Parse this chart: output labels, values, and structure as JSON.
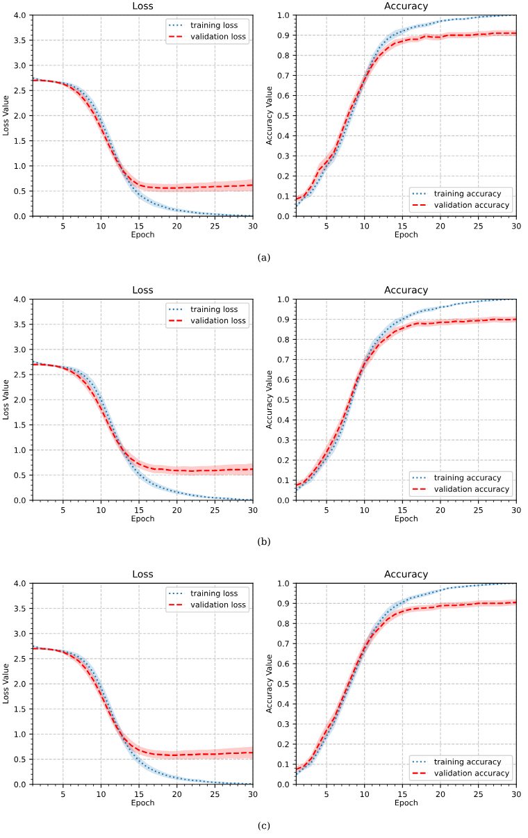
{
  "chart_data": [
    {
      "type": "line",
      "title": "Loss",
      "xlabel": "Epoch",
      "ylabel": "Loss Value",
      "xlim": [
        1,
        30
      ],
      "xticks": [
        5,
        10,
        15,
        20,
        25,
        30
      ],
      "ylim": [
        0,
        4
      ],
      "yticks": [
        {
          "value": 0,
          "label": "0.0"
        },
        0.5,
        {
          "value": 1,
          "label": "1.0"
        },
        1.5,
        {
          "value": 2,
          "label": "2.0"
        },
        2.5,
        {
          "value": 3,
          "label": "3.0"
        },
        3.5,
        {
          "value": 4,
          "label": "4.0"
        }
      ],
      "grid": true,
      "legend": "top right",
      "annotations": [
        "(a)"
      ],
      "x": [
        1,
        2,
        3,
        4,
        5,
        6,
        7,
        8,
        9,
        10,
        11,
        12,
        13,
        14,
        15,
        16,
        17,
        18,
        19,
        20,
        21,
        22,
        23,
        24,
        25,
        26,
        27,
        28,
        29,
        30
      ],
      "series": [
        {
          "name": "training loss",
          "color": "#1f77b4",
          "line_style": "dotted",
          "values": [
            2.75,
            2.71,
            2.69,
            2.67,
            2.65,
            2.61,
            2.53,
            2.4,
            2.2,
            1.9,
            1.55,
            1.18,
            0.85,
            0.6,
            0.43,
            0.33,
            0.25,
            0.2,
            0.15,
            0.12,
            0.1,
            0.08,
            0.06,
            0.05,
            0.04,
            0.03,
            0.02,
            0.02,
            0.01,
            0.01
          ],
          "lower": [
            2.73,
            2.69,
            2.67,
            2.65,
            2.62,
            2.57,
            2.47,
            2.32,
            2.1,
            1.78,
            1.43,
            1.06,
            0.75,
            0.5,
            0.35,
            0.26,
            0.19,
            0.15,
            0.11,
            0.08,
            0.07,
            0.05,
            0.03,
            0.03,
            0.02,
            0.01,
            0.0,
            0.01,
            0.0,
            0.0
          ],
          "upper": [
            2.77,
            2.73,
            2.71,
            2.69,
            2.68,
            2.65,
            2.59,
            2.48,
            2.3,
            2.02,
            1.67,
            1.3,
            0.95,
            0.7,
            0.51,
            0.4,
            0.31,
            0.25,
            0.19,
            0.16,
            0.13,
            0.11,
            0.09,
            0.07,
            0.06,
            0.05,
            0.04,
            0.03,
            0.02,
            0.02
          ]
        },
        {
          "name": "validation loss",
          "color": "#ff0000",
          "line_style": "dashed",
          "values": [
            2.7,
            2.7,
            2.69,
            2.67,
            2.63,
            2.56,
            2.45,
            2.28,
            2.05,
            1.75,
            1.42,
            1.12,
            0.88,
            0.72,
            0.62,
            0.58,
            0.57,
            0.56,
            0.56,
            0.56,
            0.57,
            0.57,
            0.58,
            0.58,
            0.59,
            0.59,
            0.6,
            0.6,
            0.61,
            0.62
          ],
          "lower": [
            2.68,
            2.68,
            2.67,
            2.65,
            2.6,
            2.51,
            2.38,
            2.19,
            1.95,
            1.65,
            1.32,
            1.02,
            0.78,
            0.62,
            0.54,
            0.5,
            0.49,
            0.48,
            0.48,
            0.48,
            0.48,
            0.48,
            0.49,
            0.49,
            0.49,
            0.49,
            0.5,
            0.49,
            0.5,
            0.5
          ],
          "upper": [
            2.72,
            2.72,
            2.71,
            2.69,
            2.66,
            2.61,
            2.52,
            2.37,
            2.15,
            1.85,
            1.52,
            1.22,
            0.98,
            0.82,
            0.7,
            0.66,
            0.65,
            0.64,
            0.64,
            0.64,
            0.66,
            0.66,
            0.67,
            0.67,
            0.69,
            0.69,
            0.7,
            0.71,
            0.72,
            0.74
          ]
        }
      ]
    },
    {
      "type": "line",
      "title": "Accuracy",
      "xlabel": "Epoch",
      "ylabel": "Accuracy Value",
      "xlim": [
        1,
        30
      ],
      "xticks": [
        5,
        10,
        15,
        20,
        25,
        30
      ],
      "ylim": [
        0,
        1
      ],
      "yticks": [
        {
          "value": 0,
          "label": "0.0"
        },
        0.1,
        0.2,
        0.3,
        0.4,
        0.5,
        0.6,
        0.7,
        0.8,
        0.9,
        {
          "value": 1,
          "label": "1.0"
        }
      ],
      "grid": true,
      "legend": "bottom right",
      "x": [
        1,
        2,
        3,
        4,
        5,
        6,
        7,
        8,
        9,
        10,
        11,
        12,
        13,
        14,
        15,
        16,
        17,
        18,
        19,
        20,
        21,
        22,
        23,
        24,
        25,
        26,
        27,
        28,
        29,
        30
      ],
      "series": [
        {
          "name": "training accuracy",
          "color": "#1f77b4",
          "line_style": "dotted",
          "values": [
            0.05,
            0.09,
            0.12,
            0.18,
            0.25,
            0.3,
            0.38,
            0.48,
            0.58,
            0.68,
            0.77,
            0.84,
            0.88,
            0.905,
            0.92,
            0.935,
            0.945,
            0.95,
            0.96,
            0.97,
            0.975,
            0.98,
            0.98,
            0.985,
            0.99,
            0.993,
            0.995,
            0.997,
            0.999,
            1.0
          ],
          "lower": [
            0.04,
            0.08,
            0.1,
            0.16,
            0.23,
            0.27,
            0.35,
            0.45,
            0.55,
            0.65,
            0.74,
            0.82,
            0.86,
            0.885,
            0.905,
            0.925,
            0.935,
            0.94,
            0.95,
            0.965,
            0.97,
            0.975,
            0.975,
            0.98,
            0.985,
            0.988,
            0.99,
            0.994,
            0.998,
            1.0
          ],
          "upper": [
            0.06,
            0.1,
            0.14,
            0.2,
            0.27,
            0.33,
            0.41,
            0.51,
            0.61,
            0.71,
            0.8,
            0.86,
            0.9,
            0.925,
            0.935,
            0.945,
            0.955,
            0.96,
            0.97,
            0.975,
            0.98,
            0.985,
            0.985,
            0.99,
            0.995,
            0.998,
            1.0,
            1.0,
            1.0,
            1.0
          ]
        },
        {
          "name": "validation accuracy",
          "color": "#ff0000",
          "line_style": "dashed",
          "values": [
            0.085,
            0.1,
            0.15,
            0.23,
            0.27,
            0.32,
            0.42,
            0.52,
            0.6,
            0.68,
            0.75,
            0.8,
            0.835,
            0.86,
            0.87,
            0.88,
            0.88,
            0.895,
            0.89,
            0.89,
            0.9,
            0.9,
            0.9,
            0.9,
            0.905,
            0.905,
            0.91,
            0.91,
            0.91,
            0.91
          ],
          "lower": [
            0.07,
            0.085,
            0.13,
            0.2,
            0.24,
            0.29,
            0.39,
            0.49,
            0.57,
            0.65,
            0.72,
            0.78,
            0.815,
            0.84,
            0.855,
            0.865,
            0.865,
            0.88,
            0.875,
            0.875,
            0.885,
            0.885,
            0.885,
            0.885,
            0.89,
            0.89,
            0.895,
            0.895,
            0.895,
            0.895
          ],
          "upper": [
            0.1,
            0.115,
            0.17,
            0.26,
            0.3,
            0.35,
            0.45,
            0.55,
            0.63,
            0.71,
            0.78,
            0.82,
            0.855,
            0.88,
            0.885,
            0.895,
            0.895,
            0.91,
            0.905,
            0.905,
            0.915,
            0.915,
            0.915,
            0.915,
            0.92,
            0.92,
            0.925,
            0.925,
            0.925,
            0.925
          ]
        }
      ]
    },
    {
      "type": "line",
      "title": "Loss",
      "xlabel": "Epoch",
      "ylabel": "Loss Value",
      "xlim": [
        1,
        30
      ],
      "xticks": [
        5,
        10,
        15,
        20,
        25,
        30
      ],
      "ylim": [
        0,
        4
      ],
      "yticks": [
        {
          "value": 0,
          "label": "0.0"
        },
        0.5,
        {
          "value": 1,
          "label": "1.0"
        },
        1.5,
        {
          "value": 2,
          "label": "2.0"
        },
        2.5,
        {
          "value": 3,
          "label": "3.0"
        },
        3.5,
        {
          "value": 4,
          "label": "4.0"
        }
      ],
      "grid": true,
      "legend": "top right",
      "annotations": [
        "(b)"
      ],
      "x": [
        1,
        2,
        3,
        4,
        5,
        6,
        7,
        8,
        9,
        10,
        11,
        12,
        13,
        14,
        15,
        16,
        17,
        18,
        19,
        20,
        21,
        22,
        23,
        24,
        25,
        26,
        27,
        28,
        29,
        30
      ],
      "series": [
        {
          "name": "training loss",
          "color": "#1f77b4",
          "line_style": "dotted",
          "values": [
            2.76,
            2.72,
            2.69,
            2.67,
            2.65,
            2.62,
            2.56,
            2.45,
            2.28,
            2.0,
            1.65,
            1.28,
            0.95,
            0.7,
            0.52,
            0.4,
            0.31,
            0.25,
            0.2,
            0.16,
            0.13,
            0.1,
            0.08,
            0.06,
            0.05,
            0.04,
            0.03,
            0.02,
            0.01,
            0.01
          ],
          "lower": [
            2.74,
            2.7,
            2.67,
            2.65,
            2.62,
            2.58,
            2.5,
            2.37,
            2.18,
            1.88,
            1.53,
            1.16,
            0.85,
            0.6,
            0.44,
            0.33,
            0.25,
            0.2,
            0.16,
            0.12,
            0.1,
            0.07,
            0.05,
            0.04,
            0.03,
            0.02,
            0.01,
            0.01,
            0.0,
            0.0
          ],
          "upper": [
            2.78,
            2.74,
            2.71,
            2.69,
            2.68,
            2.66,
            2.62,
            2.53,
            2.38,
            2.12,
            1.77,
            1.4,
            1.05,
            0.8,
            0.6,
            0.47,
            0.37,
            0.3,
            0.24,
            0.2,
            0.16,
            0.13,
            0.11,
            0.08,
            0.07,
            0.06,
            0.05,
            0.03,
            0.02,
            0.02
          ]
        },
        {
          "name": "validation loss",
          "color": "#ff0000",
          "line_style": "dashed",
          "values": [
            2.7,
            2.7,
            2.69,
            2.67,
            2.63,
            2.57,
            2.47,
            2.32,
            2.1,
            1.82,
            1.5,
            1.2,
            0.97,
            0.82,
            0.72,
            0.66,
            0.62,
            0.62,
            0.6,
            0.59,
            0.59,
            0.58,
            0.59,
            0.59,
            0.59,
            0.6,
            0.61,
            0.61,
            0.61,
            0.62
          ],
          "lower": [
            2.68,
            2.68,
            2.67,
            2.65,
            2.6,
            2.52,
            2.4,
            2.23,
            2.0,
            1.72,
            1.4,
            1.1,
            0.87,
            0.72,
            0.64,
            0.58,
            0.54,
            0.54,
            0.52,
            0.51,
            0.5,
            0.49,
            0.5,
            0.5,
            0.49,
            0.5,
            0.51,
            0.5,
            0.5,
            0.5
          ],
          "upper": [
            2.72,
            2.72,
            2.71,
            2.69,
            2.66,
            2.62,
            2.54,
            2.41,
            2.2,
            1.92,
            1.6,
            1.3,
            1.07,
            0.92,
            0.8,
            0.74,
            0.7,
            0.7,
            0.68,
            0.67,
            0.68,
            0.67,
            0.68,
            0.68,
            0.69,
            0.7,
            0.71,
            0.72,
            0.72,
            0.74
          ]
        }
      ]
    },
    {
      "type": "line",
      "title": "Accuracy",
      "xlabel": "Epoch",
      "ylabel": "Accuracy Value",
      "xlim": [
        1,
        30
      ],
      "xticks": [
        5,
        10,
        15,
        20,
        25,
        30
      ],
      "ylim": [
        0,
        1
      ],
      "yticks": [
        {
          "value": 0,
          "label": "0.0"
        },
        0.1,
        0.2,
        0.3,
        0.4,
        0.5,
        0.6,
        0.7,
        0.8,
        0.9,
        {
          "value": 1,
          "label": "1.0"
        }
      ],
      "grid": true,
      "legend": "bottom right",
      "x": [
        1,
        2,
        3,
        4,
        5,
        6,
        7,
        8,
        9,
        10,
        11,
        12,
        13,
        14,
        15,
        16,
        17,
        18,
        19,
        20,
        21,
        22,
        23,
        24,
        25,
        26,
        27,
        28,
        29,
        30
      ],
      "series": [
        {
          "name": "training accuracy",
          "color": "#1f77b4",
          "line_style": "dotted",
          "values": [
            0.05,
            0.08,
            0.11,
            0.16,
            0.21,
            0.27,
            0.35,
            0.46,
            0.58,
            0.68,
            0.76,
            0.81,
            0.85,
            0.88,
            0.9,
            0.92,
            0.935,
            0.945,
            0.95,
            0.96,
            0.965,
            0.975,
            0.98,
            0.985,
            0.99,
            0.993,
            0.995,
            0.997,
            0.999,
            1.0
          ],
          "lower": [
            0.04,
            0.07,
            0.09,
            0.14,
            0.19,
            0.24,
            0.32,
            0.43,
            0.55,
            0.65,
            0.73,
            0.79,
            0.83,
            0.86,
            0.885,
            0.91,
            0.925,
            0.935,
            0.94,
            0.955,
            0.96,
            0.97,
            0.975,
            0.98,
            0.985,
            0.988,
            0.99,
            0.994,
            0.998,
            1.0
          ],
          "upper": [
            0.06,
            0.09,
            0.13,
            0.18,
            0.23,
            0.3,
            0.38,
            0.49,
            0.61,
            0.71,
            0.79,
            0.83,
            0.87,
            0.9,
            0.915,
            0.93,
            0.945,
            0.955,
            0.96,
            0.965,
            0.97,
            0.98,
            0.985,
            0.99,
            0.995,
            0.998,
            1.0,
            1.0,
            1.0,
            1.0
          ]
        },
        {
          "name": "validation accuracy",
          "color": "#ff0000",
          "line_style": "dashed",
          "values": [
            0.075,
            0.09,
            0.13,
            0.18,
            0.24,
            0.31,
            0.39,
            0.49,
            0.6,
            0.68,
            0.73,
            0.78,
            0.81,
            0.84,
            0.855,
            0.87,
            0.88,
            0.878,
            0.88,
            0.885,
            0.885,
            0.89,
            0.888,
            0.892,
            0.893,
            0.895,
            0.9,
            0.898,
            0.898,
            0.9
          ],
          "lower": [
            0.06,
            0.075,
            0.11,
            0.15,
            0.21,
            0.28,
            0.36,
            0.46,
            0.57,
            0.65,
            0.7,
            0.76,
            0.79,
            0.82,
            0.84,
            0.855,
            0.865,
            0.863,
            0.865,
            0.87,
            0.87,
            0.875,
            0.873,
            0.877,
            0.878,
            0.88,
            0.885,
            0.883,
            0.883,
            0.885
          ],
          "upper": [
            0.09,
            0.105,
            0.15,
            0.21,
            0.27,
            0.34,
            0.42,
            0.52,
            0.63,
            0.71,
            0.76,
            0.8,
            0.83,
            0.86,
            0.87,
            0.885,
            0.895,
            0.893,
            0.895,
            0.9,
            0.9,
            0.905,
            0.903,
            0.907,
            0.908,
            0.91,
            0.915,
            0.913,
            0.913,
            0.915
          ]
        }
      ]
    },
    {
      "type": "line",
      "title": "Loss",
      "xlabel": "Epoch",
      "ylabel": "Loss Value",
      "xlim": [
        1,
        30
      ],
      "xticks": [
        5,
        10,
        15,
        20,
        25,
        30
      ],
      "ylim": [
        0,
        4
      ],
      "yticks": [
        {
          "value": 0,
          "label": "0.0"
        },
        0.5,
        {
          "value": 1,
          "label": "1.0"
        },
        1.5,
        {
          "value": 2,
          "label": "2.0"
        },
        2.5,
        {
          "value": 3,
          "label": "3.0"
        },
        3.5,
        {
          "value": 4,
          "label": "4.0"
        }
      ],
      "grid": true,
      "legend": "top right",
      "annotations": [
        "(c)"
      ],
      "x": [
        1,
        2,
        3,
        4,
        5,
        6,
        7,
        8,
        9,
        10,
        11,
        12,
        13,
        14,
        15,
        16,
        17,
        18,
        19,
        20,
        21,
        22,
        23,
        24,
        25,
        26,
        27,
        28,
        29,
        30
      ],
      "series": [
        {
          "name": "training loss",
          "color": "#1f77b4",
          "line_style": "dotted",
          "values": [
            2.75,
            2.71,
            2.69,
            2.67,
            2.65,
            2.61,
            2.54,
            2.42,
            2.22,
            1.92,
            1.57,
            1.2,
            0.88,
            0.64,
            0.47,
            0.35,
            0.27,
            0.21,
            0.16,
            0.13,
            0.1,
            0.08,
            0.07,
            0.05,
            0.04,
            0.03,
            0.02,
            0.02,
            0.01,
            0.01
          ],
          "lower": [
            2.73,
            2.69,
            2.67,
            2.65,
            2.62,
            2.57,
            2.48,
            2.34,
            2.12,
            1.8,
            1.45,
            1.08,
            0.78,
            0.54,
            0.39,
            0.28,
            0.21,
            0.16,
            0.12,
            0.09,
            0.07,
            0.05,
            0.04,
            0.03,
            0.02,
            0.01,
            0.0,
            0.01,
            0.0,
            0.0
          ],
          "upper": [
            2.77,
            2.73,
            2.71,
            2.69,
            2.68,
            2.65,
            2.6,
            2.5,
            2.32,
            2.04,
            1.69,
            1.32,
            0.98,
            0.74,
            0.55,
            0.42,
            0.33,
            0.26,
            0.2,
            0.17,
            0.13,
            0.11,
            0.1,
            0.07,
            0.06,
            0.05,
            0.04,
            0.03,
            0.02,
            0.02
          ]
        },
        {
          "name": "validation loss",
          "color": "#ff0000",
          "line_style": "dashed",
          "values": [
            2.7,
            2.7,
            2.69,
            2.67,
            2.63,
            2.56,
            2.46,
            2.3,
            2.07,
            1.78,
            1.45,
            1.15,
            0.92,
            0.77,
            0.68,
            0.63,
            0.6,
            0.59,
            0.58,
            0.58,
            0.59,
            0.59,
            0.6,
            0.6,
            0.6,
            0.61,
            0.62,
            0.62,
            0.63,
            0.63
          ],
          "lower": [
            2.68,
            2.68,
            2.67,
            2.65,
            2.6,
            2.51,
            2.39,
            2.21,
            1.97,
            1.68,
            1.35,
            1.05,
            0.82,
            0.67,
            0.6,
            0.55,
            0.52,
            0.51,
            0.5,
            0.5,
            0.5,
            0.5,
            0.51,
            0.51,
            0.5,
            0.51,
            0.52,
            0.51,
            0.52,
            0.51
          ],
          "upper": [
            2.72,
            2.72,
            2.71,
            2.69,
            2.66,
            2.61,
            2.53,
            2.39,
            2.17,
            1.88,
            1.55,
            1.25,
            1.02,
            0.87,
            0.76,
            0.71,
            0.68,
            0.67,
            0.66,
            0.66,
            0.68,
            0.68,
            0.69,
            0.69,
            0.7,
            0.71,
            0.72,
            0.73,
            0.74,
            0.75
          ]
        }
      ]
    },
    {
      "type": "line",
      "title": "Accuracy",
      "xlabel": "Epoch",
      "ylabel": "Accuracy Value",
      "xlim": [
        1,
        30
      ],
      "xticks": [
        5,
        10,
        15,
        20,
        25,
        30
      ],
      "ylim": [
        0,
        1
      ],
      "yticks": [
        {
          "value": 0,
          "label": "0.0"
        },
        0.1,
        0.2,
        0.3,
        0.4,
        0.5,
        0.6,
        0.7,
        0.8,
        0.9,
        {
          "value": 1,
          "label": "1.0"
        }
      ],
      "grid": true,
      "legend": "bottom right",
      "x": [
        1,
        2,
        3,
        4,
        5,
        6,
        7,
        8,
        9,
        10,
        11,
        12,
        13,
        14,
        15,
        16,
        17,
        18,
        19,
        20,
        21,
        22,
        23,
        24,
        25,
        26,
        27,
        28,
        29,
        30
      ],
      "series": [
        {
          "name": "training accuracy",
          "color": "#1f77b4",
          "line_style": "dotted",
          "values": [
            0.05,
            0.08,
            0.11,
            0.17,
            0.24,
            0.31,
            0.4,
            0.49,
            0.58,
            0.67,
            0.75,
            0.81,
            0.855,
            0.885,
            0.905,
            0.925,
            0.935,
            0.945,
            0.955,
            0.965,
            0.975,
            0.98,
            0.983,
            0.987,
            0.99,
            0.993,
            0.995,
            0.997,
            0.999,
            1.0
          ],
          "lower": [
            0.04,
            0.07,
            0.09,
            0.15,
            0.22,
            0.28,
            0.37,
            0.46,
            0.55,
            0.64,
            0.72,
            0.79,
            0.835,
            0.865,
            0.89,
            0.915,
            0.925,
            0.935,
            0.945,
            0.96,
            0.97,
            0.975,
            0.978,
            0.982,
            0.985,
            0.988,
            0.99,
            0.994,
            0.998,
            1.0
          ],
          "upper": [
            0.06,
            0.09,
            0.13,
            0.19,
            0.26,
            0.34,
            0.43,
            0.52,
            0.61,
            0.7,
            0.78,
            0.83,
            0.875,
            0.905,
            0.92,
            0.935,
            0.945,
            0.955,
            0.965,
            0.97,
            0.98,
            0.985,
            0.988,
            0.992,
            0.995,
            0.998,
            1.0,
            1.0,
            1.0,
            1.0
          ]
        },
        {
          "name": "validation accuracy",
          "color": "#ff0000",
          "line_style": "dashed",
          "values": [
            0.075,
            0.09,
            0.13,
            0.2,
            0.27,
            0.33,
            0.42,
            0.51,
            0.6,
            0.68,
            0.74,
            0.78,
            0.82,
            0.845,
            0.86,
            0.87,
            0.875,
            0.877,
            0.88,
            0.888,
            0.89,
            0.89,
            0.893,
            0.895,
            0.9,
            0.9,
            0.9,
            0.9,
            0.903,
            0.905
          ],
          "lower": [
            0.06,
            0.075,
            0.11,
            0.17,
            0.24,
            0.3,
            0.39,
            0.48,
            0.57,
            0.65,
            0.71,
            0.76,
            0.8,
            0.825,
            0.845,
            0.855,
            0.86,
            0.862,
            0.865,
            0.873,
            0.875,
            0.875,
            0.878,
            0.88,
            0.885,
            0.885,
            0.885,
            0.885,
            0.888,
            0.89
          ],
          "upper": [
            0.09,
            0.105,
            0.15,
            0.23,
            0.3,
            0.36,
            0.45,
            0.54,
            0.63,
            0.71,
            0.77,
            0.8,
            0.84,
            0.865,
            0.875,
            0.885,
            0.89,
            0.892,
            0.895,
            0.903,
            0.905,
            0.905,
            0.908,
            0.91,
            0.915,
            0.915,
            0.915,
            0.915,
            0.918,
            0.92
          ]
        }
      ]
    }
  ]
}
